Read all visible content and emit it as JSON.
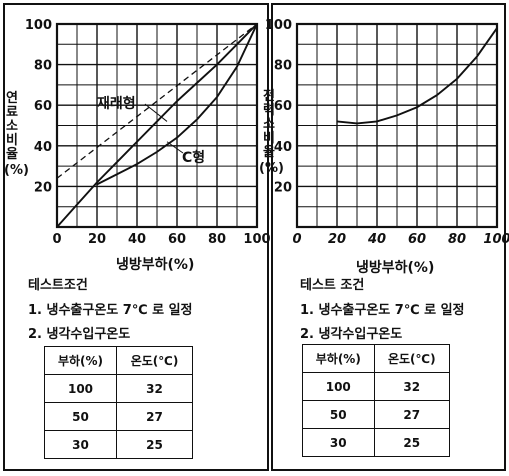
{
  "chart_data": [
    {
      "type": "line",
      "xlabel": "냉방부하(%)",
      "ylabel": [
        "연료소비율",
        "(%)"
      ],
      "xticks": [
        0,
        20,
        40,
        60,
        80,
        100
      ],
      "yticks": [
        20,
        40,
        60,
        80,
        100
      ],
      "xlim": [
        0,
        100
      ],
      "ylim": [
        0,
        100
      ],
      "grid": true,
      "series": [
        {
          "name": "재래형",
          "style": "solid",
          "x": [
            0,
            10,
            20,
            30,
            40,
            50,
            60,
            70,
            80,
            90,
            100
          ],
          "y": [
            0,
            11,
            22,
            32,
            42,
            52,
            62,
            71,
            80,
            90,
            100
          ]
        },
        {
          "name": "C형",
          "style": "solid",
          "x": [
            20,
            30,
            40,
            50,
            60,
            70,
            80,
            90,
            100
          ],
          "y": [
            21,
            26,
            31,
            37,
            44,
            53,
            64,
            79,
            100
          ]
        },
        {
          "name": "",
          "style": "dashed",
          "x": [
            0,
            100
          ],
          "y": [
            24,
            100
          ]
        }
      ],
      "annotations": [
        "재래형",
        "C형"
      ]
    },
    {
      "type": "line",
      "xlabel": "냉방부하(%)",
      "ylabel": [
        "전력소비율",
        "(%)"
      ],
      "xticks": [
        0,
        20,
        40,
        60,
        80,
        100
      ],
      "yticks": [
        20,
        40,
        60,
        80,
        100
      ],
      "xlim": [
        0,
        100
      ],
      "ylim": [
        0,
        100
      ],
      "grid": true,
      "series": [
        {
          "name": "",
          "style": "solid",
          "x": [
            20,
            25,
            30,
            40,
            50,
            60,
            70,
            80,
            90,
            100
          ],
          "y": [
            52,
            51.5,
            51,
            52,
            55,
            59,
            65,
            73,
            84,
            98
          ]
        }
      ]
    }
  ],
  "left_panel": {
    "title": "테스트조건",
    "cond1": "1. 냉수출구온도 7℃ 로 일정",
    "cond2": "2. 냉각수입구온도",
    "table": {
      "headers": [
        "부하(%)",
        "온도(℃)"
      ],
      "rows": [
        [
          "100",
          "32"
        ],
        [
          "50",
          "27"
        ],
        [
          "30",
          "25"
        ]
      ]
    }
  },
  "right_panel": {
    "title": "테스트 조건",
    "cond1": "1. 냉수출구온도 7℃ 로 일정",
    "cond2": "2. 냉각수입구온도",
    "table": {
      "headers": [
        "부하(%)",
        "온도(℃)"
      ],
      "rows": [
        [
          "100",
          "32"
        ],
        [
          "50",
          "27"
        ],
        [
          "30",
          "25"
        ]
      ]
    }
  }
}
